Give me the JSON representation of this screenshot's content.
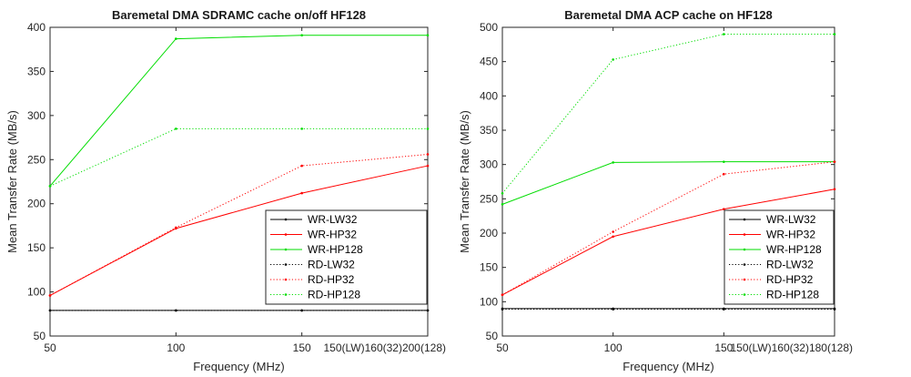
{
  "chart_data": [
    {
      "type": "line",
      "title": "Baremetal DMA SDRAMC cache on/off HF128",
      "xlabel": "Frequency (MHz)",
      "ylabel": "Mean Transfer Rate (MB/s)",
      "x": [
        50,
        100,
        150,
        200
      ],
      "xtick_labels": [
        "50",
        "100",
        "150",
        "150(LW)160(32)200(128)"
      ],
      "yticks": [
        50,
        100,
        150,
        200,
        250,
        300,
        350,
        400
      ],
      "ylim": [
        50,
        400
      ],
      "legend_position": "lower-right",
      "series": [
        {
          "name": "WR-LW32",
          "color": "#000000",
          "style": "solid",
          "values": [
            79,
            79,
            79,
            79
          ]
        },
        {
          "name": "WR-HP32",
          "color": "#ff0000",
          "style": "solid",
          "values": [
            96,
            172,
            212,
            243
          ]
        },
        {
          "name": "WR-HP128",
          "color": "#00dd00",
          "style": "solid",
          "values": [
            220,
            387,
            391,
            391
          ]
        },
        {
          "name": "RD-LW32",
          "color": "#000000",
          "style": "dotted",
          "values": [
            79,
            79,
            79,
            79
          ]
        },
        {
          "name": "RD-HP32",
          "color": "#ff0000",
          "style": "dotted",
          "values": [
            96,
            173,
            243,
            256
          ]
        },
        {
          "name": "RD-HP128",
          "color": "#00dd00",
          "style": "dotted",
          "values": [
            220,
            285,
            285,
            285
          ]
        }
      ]
    },
    {
      "type": "line",
      "title": "Baremetal DMA ACP cache on HF128",
      "xlabel": "Frequency (MHz)",
      "ylabel": "Mean Transfer Rate (MB/s)",
      "x": [
        50,
        100,
        150,
        200
      ],
      "xtick_labels": [
        "50",
        "100",
        "150",
        "150(LW)160(32)180(128)"
      ],
      "yticks": [
        50,
        100,
        150,
        200,
        250,
        300,
        350,
        400,
        450,
        500
      ],
      "ylim": [
        50,
        500
      ],
      "legend_position": "lower-right",
      "series": [
        {
          "name": "WR-LW32",
          "color": "#000000",
          "style": "solid",
          "values": [
            90,
            90,
            90,
            90
          ]
        },
        {
          "name": "WR-HP32",
          "color": "#ff0000",
          "style": "solid",
          "values": [
            110,
            195,
            235,
            264
          ]
        },
        {
          "name": "WR-HP128",
          "color": "#00dd00",
          "style": "solid",
          "values": [
            242,
            303,
            304,
            304
          ]
        },
        {
          "name": "RD-LW32",
          "color": "#000000",
          "style": "dotted",
          "values": [
            89,
            89,
            89,
            89
          ]
        },
        {
          "name": "RD-HP32",
          "color": "#ff0000",
          "style": "dotted",
          "values": [
            110,
            202,
            286,
            304
          ]
        },
        {
          "name": "RD-HP128",
          "color": "#00dd00",
          "style": "dotted",
          "values": [
            258,
            453,
            490,
            490
          ]
        }
      ]
    }
  ]
}
